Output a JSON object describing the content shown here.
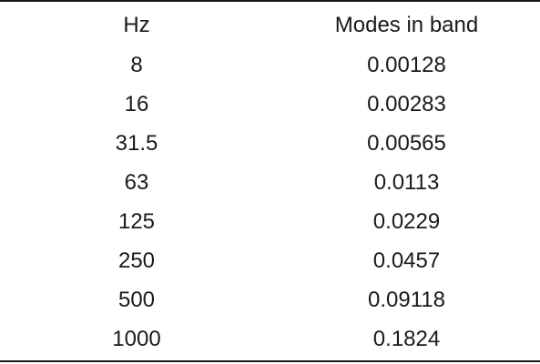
{
  "table": {
    "headers": [
      "Hz",
      "Modes in band"
    ],
    "rows": [
      [
        "8",
        "0.00128"
      ],
      [
        "16",
        "0.00283"
      ],
      [
        "31.5",
        "0.00565"
      ],
      [
        "63",
        "0.0113"
      ],
      [
        "125",
        "0.0229"
      ],
      [
        "250",
        "0.0457"
      ],
      [
        "500",
        "0.09118"
      ],
      [
        "1000",
        "0.1824"
      ]
    ]
  }
}
